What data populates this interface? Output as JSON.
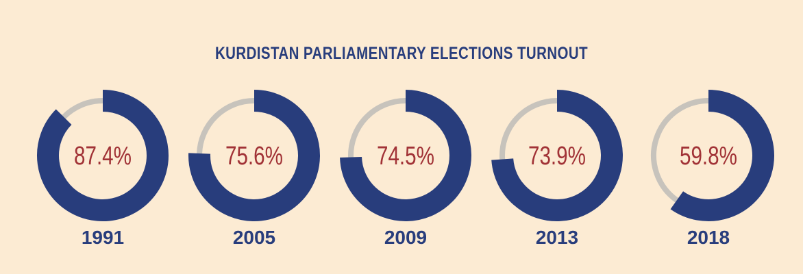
{
  "chart_data": {
    "type": "donut",
    "title": "KURDISTAN PARLIAMENTARY ELECTIONS TURNOUT",
    "categories": [
      "1991",
      "2005",
      "2009",
      "2013",
      "2018"
    ],
    "values": [
      87.4,
      75.6,
      74.5,
      73.9,
      59.8
    ],
    "value_labels": [
      "87.4%",
      "75.6%",
      "74.5%",
      "73.9%",
      "59.8%"
    ],
    "unit": "%",
    "range": [
      0,
      100
    ]
  },
  "colors": {
    "background": "#FCEBD3",
    "filled": "#283D7C",
    "remainder": "#C7C3BC",
    "value_text": "#A13236",
    "year_text": "#283D7C"
  }
}
